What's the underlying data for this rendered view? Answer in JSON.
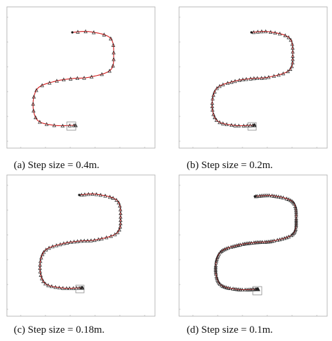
{
  "figure": {
    "panels": [
      {
        "id": "a",
        "caption": "(a) Step size = 0.4m.",
        "marker_count": 32,
        "density": "sparse"
      },
      {
        "id": "b",
        "caption": "(b) Step size = 0.2m.",
        "marker_count": 60,
        "density": "medium"
      },
      {
        "id": "c",
        "caption": "(c) Step size = 0.18m.",
        "marker_count": 66,
        "density": "medium"
      },
      {
        "id": "d",
        "caption": "(d) Step size = 0.1m.",
        "marker_count": 120,
        "density": "dense"
      }
    ],
    "colors": {
      "trajectory": "#d11a1a",
      "marker": "#222222",
      "axes": "#aaaaaa",
      "target_box": "#888888"
    }
  }
}
